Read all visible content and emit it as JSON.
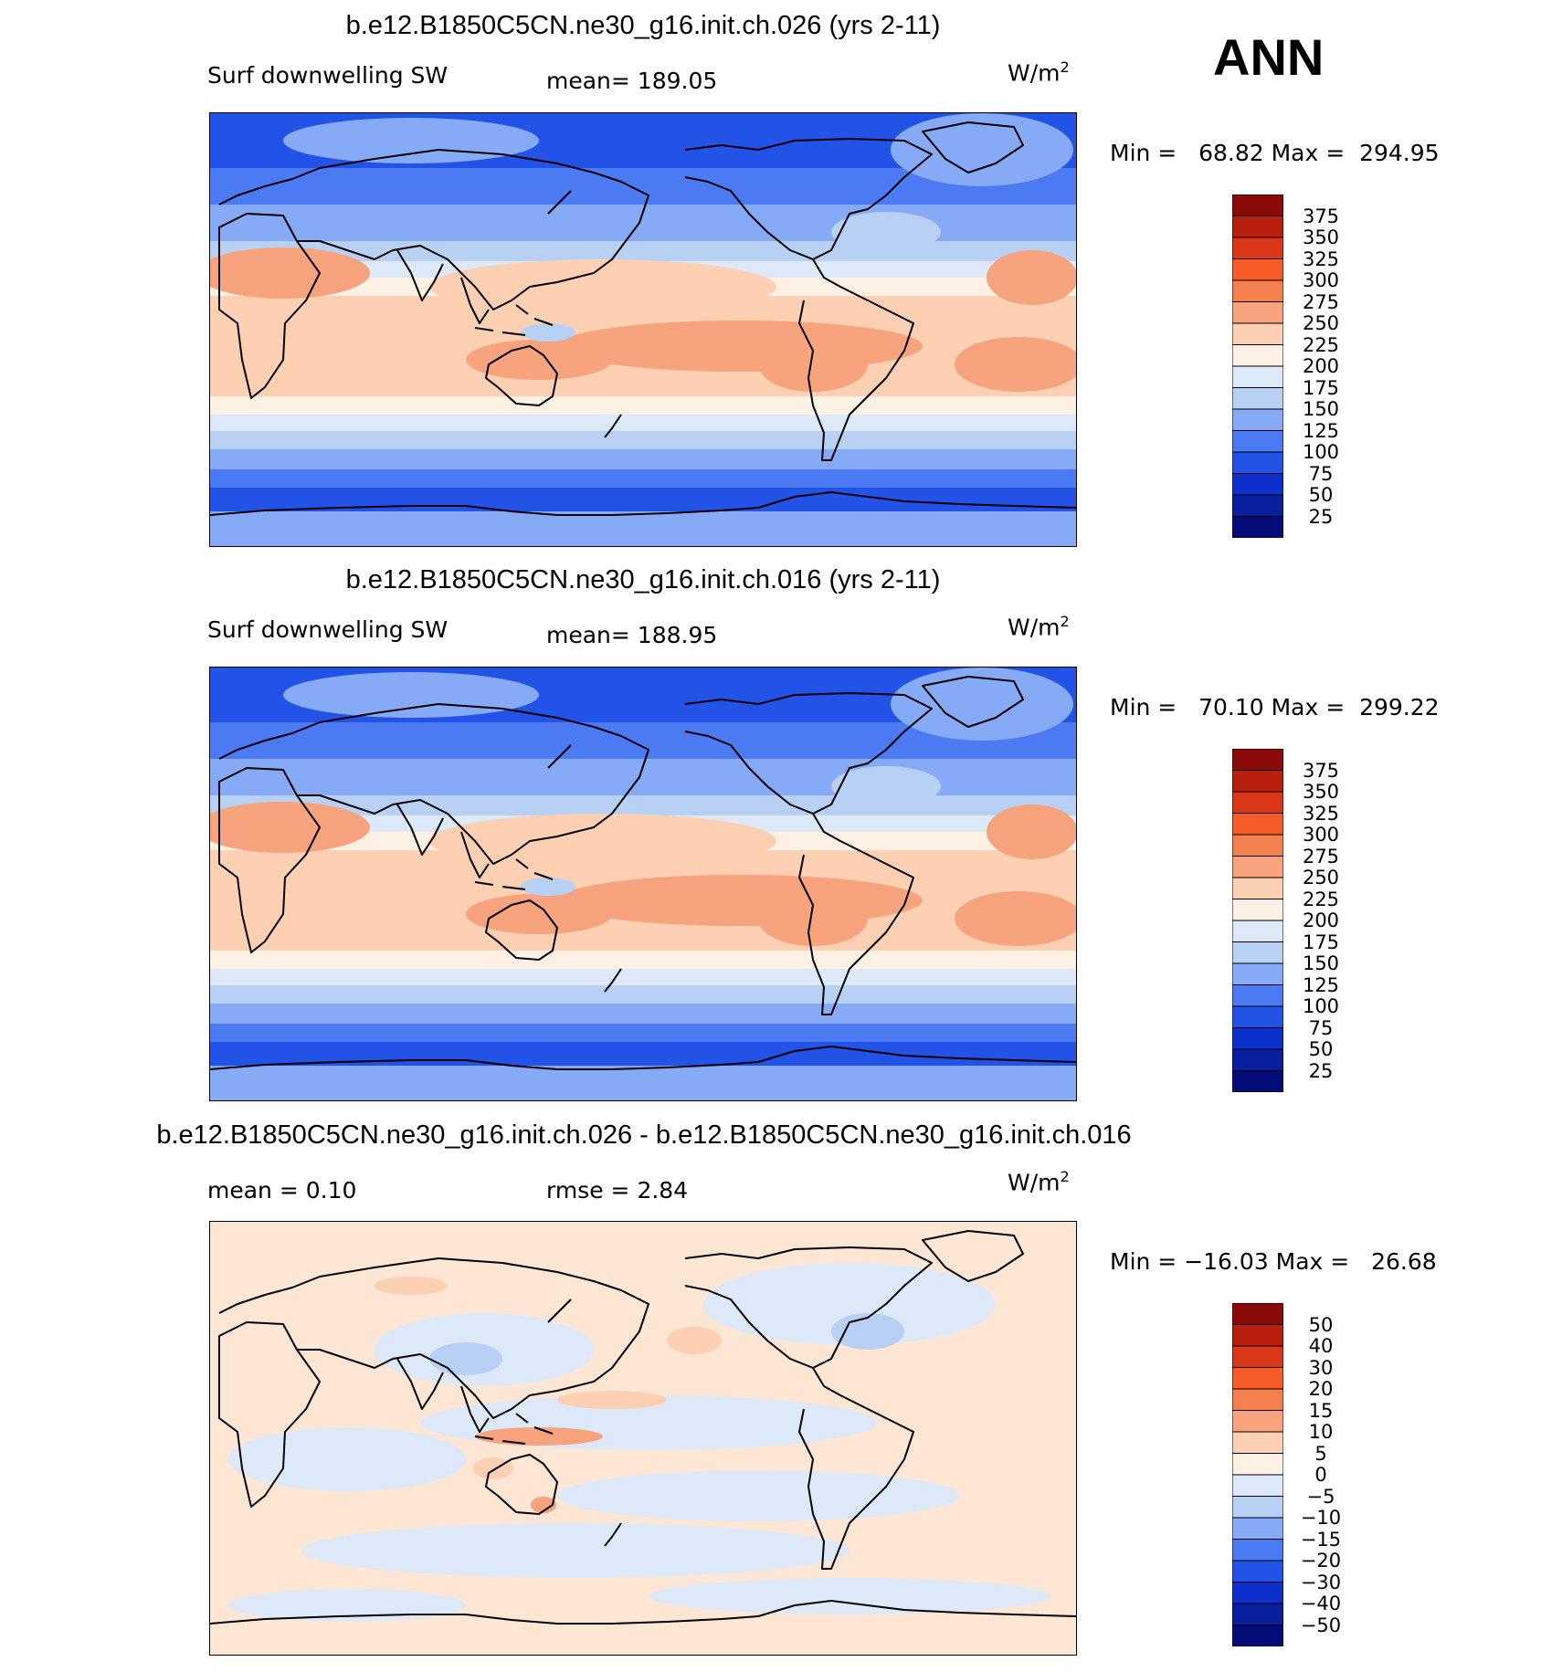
{
  "season": "ANN",
  "panels": [
    {
      "title": "b.e12.B1850C5CN.ne30_g16.init.ch.026 (yrs 2-11)",
      "left_label": "Surf downwelling SW",
      "mid_label": "mean=  189.05",
      "units_base": "W/m",
      "units_exp": "2",
      "minmax": "Min =   68.82 Max =  294.95",
      "colorbar_labels": [
        "375",
        "350",
        "325",
        "300",
        "275",
        "250",
        "225",
        "200",
        "175",
        "150",
        "125",
        "100",
        "75",
        "50",
        "25"
      ],
      "colorbar_colors": [
        "#8a0a0a",
        "#b81f0c",
        "#d9361a",
        "#f65a26",
        "#f5804f",
        "#f6a37e",
        "#fdcfb3",
        "#fdf1e6",
        "#dde9f8",
        "#b8d0f3",
        "#86aaf5",
        "#4c7af2",
        "#2352e6",
        "#0d2fcc",
        "#0a1ea0",
        "#050c78"
      ]
    },
    {
      "title": "b.e12.B1850C5CN.ne30_g16.init.ch.016 (yrs 2-11)",
      "left_label": "Surf downwelling SW",
      "mid_label": "mean=  188.95",
      "units_base": "W/m",
      "units_exp": "2",
      "minmax": "Min =   70.10 Max =  299.22",
      "colorbar_labels": [
        "375",
        "350",
        "325",
        "300",
        "275",
        "250",
        "225",
        "200",
        "175",
        "150",
        "125",
        "100",
        "75",
        "50",
        "25"
      ],
      "colorbar_colors": [
        "#8a0a0a",
        "#b81f0c",
        "#d9361a",
        "#f65a26",
        "#f5804f",
        "#f6a37e",
        "#fdcfb3",
        "#fdf1e6",
        "#dde9f8",
        "#b8d0f3",
        "#86aaf5",
        "#4c7af2",
        "#2352e6",
        "#0d2fcc",
        "#0a1ea0",
        "#050c78"
      ]
    },
    {
      "title": "b.e12.B1850C5CN.ne30_g16.init.ch.026 - b.e12.B1850C5CN.ne30_g16.init.ch.016",
      "left_label": "mean =    0.10",
      "mid_label": "rmse =    2.84",
      "units_base": "W/m",
      "units_exp": "2",
      "minmax": "Min = −16.03 Max =   26.68",
      "colorbar_labels": [
        "50",
        "40",
        "30",
        "20",
        "15",
        "10",
        "5",
        "0",
        "−5",
        "−10",
        "−15",
        "−20",
        "−30",
        "−40",
        "−50"
      ],
      "colorbar_colors": [
        "#8a0a0a",
        "#b81f0c",
        "#d9361a",
        "#f65a26",
        "#f5804f",
        "#f6a37e",
        "#fdcfb3",
        "#fdf1e6",
        "#dde9f8",
        "#b8d0f3",
        "#86aaf5",
        "#4c7af2",
        "#2352e6",
        "#0d2fcc",
        "#0a1ea0",
        "#050c78"
      ]
    }
  ],
  "field_colors": {
    "pole_dark": "#2352e6",
    "high_lat": "#4c7af2",
    "mid_lat": "#86aaf5",
    "sub_blue": "#b8d0f3",
    "light_blue": "#dde9f8",
    "cream": "#fdf1e6",
    "peach": "#fdcfb3",
    "salmon": "#f6a37e",
    "orange": "#f5804f",
    "diff_base": "#fde6d4",
    "coastline": "#000000"
  }
}
